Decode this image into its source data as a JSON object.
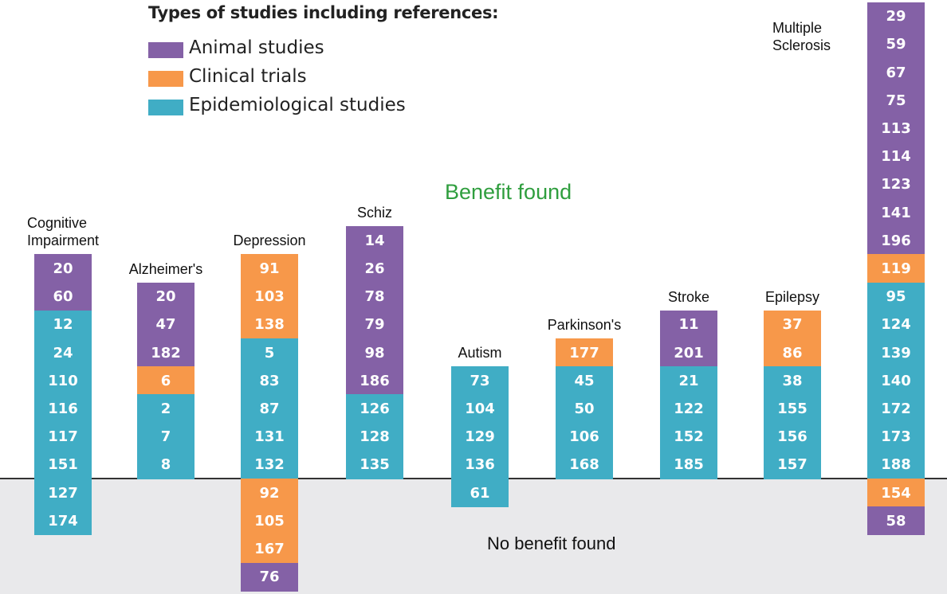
{
  "colors": {
    "animal": "#8461a6",
    "clinical": "#f7984a",
    "epidemiological": "#40adc5",
    "benefit_text": "#2f9e3e",
    "no_benefit_bg": "#e9e9eb"
  },
  "legend": {
    "title": "Types of studies including references:",
    "items": [
      {
        "label": "Animal studies",
        "type": "animal"
      },
      {
        "label": "Clinical trials",
        "type": "clinical"
      },
      {
        "label": "Epidemiological studies",
        "type": "epidemiological"
      }
    ]
  },
  "regions": {
    "benefit": "Benefit found",
    "no_benefit": "No benefit found"
  },
  "chart_data": {
    "type": "table",
    "columns": [
      {
        "label": "Cognitive Impairment",
        "label_lines": [
          "Cognitive",
          "Impairment"
        ],
        "benefit": [
          {
            "ref": "20",
            "type": "animal"
          },
          {
            "ref": "60",
            "type": "animal"
          },
          {
            "ref": "12",
            "type": "epidemiological"
          },
          {
            "ref": "24",
            "type": "epidemiological"
          },
          {
            "ref": "110",
            "type": "epidemiological"
          },
          {
            "ref": "116",
            "type": "epidemiological"
          },
          {
            "ref": "117",
            "type": "epidemiological"
          },
          {
            "ref": "151",
            "type": "epidemiological"
          }
        ],
        "no_benefit": [
          {
            "ref": "127",
            "type": "epidemiological"
          },
          {
            "ref": "174",
            "type": "epidemiological"
          }
        ]
      },
      {
        "label": "Alzheimer's",
        "label_lines": [
          "Alzheimer's"
        ],
        "benefit": [
          {
            "ref": "20",
            "type": "animal"
          },
          {
            "ref": "47",
            "type": "animal"
          },
          {
            "ref": "182",
            "type": "animal"
          },
          {
            "ref": "6",
            "type": "clinical"
          },
          {
            "ref": "2",
            "type": "epidemiological"
          },
          {
            "ref": "7",
            "type": "epidemiological"
          },
          {
            "ref": "8",
            "type": "epidemiological"
          }
        ],
        "no_benefit": []
      },
      {
        "label": "Depression",
        "label_lines": [
          "Depression"
        ],
        "benefit": [
          {
            "ref": "91",
            "type": "clinical"
          },
          {
            "ref": "103",
            "type": "clinical"
          },
          {
            "ref": "138",
            "type": "clinical"
          },
          {
            "ref": "5",
            "type": "epidemiological"
          },
          {
            "ref": "83",
            "type": "epidemiological"
          },
          {
            "ref": "87",
            "type": "epidemiological"
          },
          {
            "ref": "131",
            "type": "epidemiological"
          },
          {
            "ref": "132",
            "type": "epidemiological"
          }
        ],
        "no_benefit": [
          {
            "ref": "92",
            "type": "clinical"
          },
          {
            "ref": "105",
            "type": "clinical"
          },
          {
            "ref": "167",
            "type": "clinical"
          },
          {
            "ref": "76",
            "type": "animal"
          }
        ]
      },
      {
        "label": "Schiz",
        "label_lines": [
          "Schiz"
        ],
        "benefit": [
          {
            "ref": "14",
            "type": "animal"
          },
          {
            "ref": "26",
            "type": "animal"
          },
          {
            "ref": "78",
            "type": "animal"
          },
          {
            "ref": "79",
            "type": "animal"
          },
          {
            "ref": "98",
            "type": "animal"
          },
          {
            "ref": "186",
            "type": "animal"
          },
          {
            "ref": "126",
            "type": "epidemiological"
          },
          {
            "ref": "128",
            "type": "epidemiological"
          },
          {
            "ref": "135",
            "type": "epidemiological"
          }
        ],
        "no_benefit": []
      },
      {
        "label": "Autism",
        "label_lines": [
          "Autism"
        ],
        "benefit": [
          {
            "ref": "73",
            "type": "epidemiological"
          },
          {
            "ref": "104",
            "type": "epidemiological"
          },
          {
            "ref": "129",
            "type": "epidemiological"
          },
          {
            "ref": "136",
            "type": "epidemiological"
          }
        ],
        "no_benefit": [
          {
            "ref": "61",
            "type": "epidemiological"
          }
        ]
      },
      {
        "label": "Parkinson's",
        "label_lines": [
          "Parkinson's"
        ],
        "benefit": [
          {
            "ref": "177",
            "type": "clinical"
          },
          {
            "ref": "45",
            "type": "epidemiological"
          },
          {
            "ref": "50",
            "type": "epidemiological"
          },
          {
            "ref": "106",
            "type": "epidemiological"
          },
          {
            "ref": "168",
            "type": "epidemiological"
          }
        ],
        "no_benefit": []
      },
      {
        "label": "Stroke",
        "label_lines": [
          "Stroke"
        ],
        "benefit": [
          {
            "ref": "11",
            "type": "animal"
          },
          {
            "ref": "201",
            "type": "animal"
          },
          {
            "ref": "21",
            "type": "epidemiological"
          },
          {
            "ref": "122",
            "type": "epidemiological"
          },
          {
            "ref": "152",
            "type": "epidemiological"
          },
          {
            "ref": "185",
            "type": "epidemiological"
          }
        ],
        "no_benefit": []
      },
      {
        "label": "Epilepsy",
        "label_lines": [
          "Epilepsy"
        ],
        "benefit": [
          {
            "ref": "37",
            "type": "clinical"
          },
          {
            "ref": "86",
            "type": "clinical"
          },
          {
            "ref": "38",
            "type": "epidemiological"
          },
          {
            "ref": "155",
            "type": "epidemiological"
          },
          {
            "ref": "156",
            "type": "epidemiological"
          },
          {
            "ref": "157",
            "type": "epidemiological"
          }
        ],
        "no_benefit": []
      },
      {
        "label": "Multiple Sclerosis",
        "label_lines": [
          "Multiple",
          "Sclerosis"
        ],
        "benefit": [
          {
            "ref": "29",
            "type": "animal"
          },
          {
            "ref": "59",
            "type": "animal"
          },
          {
            "ref": "67",
            "type": "animal"
          },
          {
            "ref": "75",
            "type": "animal"
          },
          {
            "ref": "113",
            "type": "animal"
          },
          {
            "ref": "114",
            "type": "animal"
          },
          {
            "ref": "123",
            "type": "animal"
          },
          {
            "ref": "141",
            "type": "animal"
          },
          {
            "ref": "196",
            "type": "animal"
          },
          {
            "ref": "119",
            "type": "clinical"
          },
          {
            "ref": "95",
            "type": "epidemiological"
          },
          {
            "ref": "124",
            "type": "epidemiological"
          },
          {
            "ref": "139",
            "type": "epidemiological"
          },
          {
            "ref": "140",
            "type": "epidemiological"
          },
          {
            "ref": "172",
            "type": "epidemiological"
          },
          {
            "ref": "173",
            "type": "epidemiological"
          },
          {
            "ref": "188",
            "type": "epidemiological"
          }
        ],
        "no_benefit": [
          {
            "ref": "154",
            "type": "clinical"
          },
          {
            "ref": "58",
            "type": "animal"
          }
        ]
      }
    ]
  }
}
